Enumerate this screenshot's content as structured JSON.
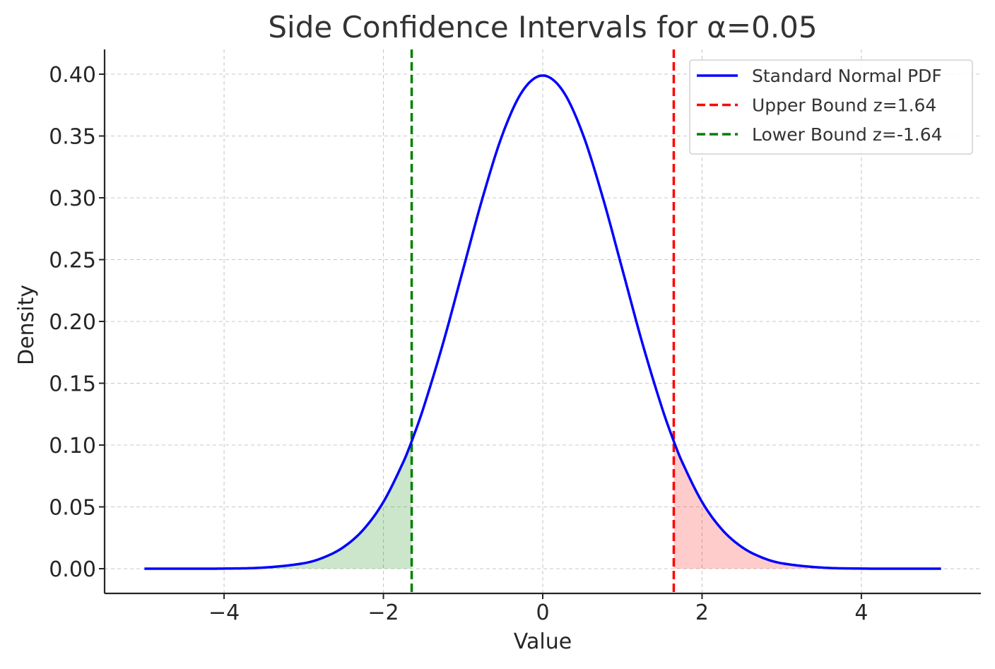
{
  "chart_data": {
    "type": "line",
    "title": "Side Confidence Intervals for α=0.05",
    "xlabel": "Value",
    "ylabel": "Density",
    "xlim": [
      -5.5,
      5.5
    ],
    "ylim": [
      -0.02,
      0.42
    ],
    "x_ticks": [
      -4,
      -2,
      0,
      2,
      4
    ],
    "x_tick_labels": [
      "−4",
      "−2",
      "0",
      "2",
      "4"
    ],
    "y_ticks": [
      0.0,
      0.05,
      0.1,
      0.15,
      0.2,
      0.25,
      0.3,
      0.35,
      0.4
    ],
    "y_tick_labels": [
      "0.00",
      "0.05",
      "0.10",
      "0.15",
      "0.20",
      "0.25",
      "0.30",
      "0.35",
      "0.40"
    ],
    "grid": true,
    "legend_position": "top-right",
    "series": [
      {
        "name": "Standard Normal PDF",
        "kind": "line",
        "color": "#0000ff",
        "x": [
          -5.0,
          -4.5,
          -4.0,
          -3.5,
          -3.0,
          -2.75,
          -2.5,
          -2.25,
          -2.0,
          -1.75,
          -1.645,
          -1.5,
          -1.25,
          -1.0,
          -0.75,
          -0.5,
          -0.25,
          0.0,
          0.25,
          0.5,
          0.75,
          1.0,
          1.25,
          1.5,
          1.645,
          1.75,
          2.0,
          2.25,
          2.5,
          2.75,
          3.0,
          3.5,
          4.0,
          4.5,
          5.0
        ],
        "y": [
          0.0,
          0.0,
          0.0001,
          0.0009,
          0.0044,
          0.0091,
          0.0175,
          0.0317,
          0.054,
          0.0863,
          0.1031,
          0.1295,
          0.1826,
          0.242,
          0.3011,
          0.3521,
          0.3867,
          0.3989,
          0.3867,
          0.3521,
          0.3011,
          0.242,
          0.1826,
          0.1295,
          0.1031,
          0.0863,
          0.054,
          0.0317,
          0.0175,
          0.0091,
          0.0044,
          0.0009,
          0.0001,
          0.0,
          0.0
        ]
      },
      {
        "name": "Upper Bound z=1.64",
        "kind": "vline",
        "color": "#ff0000",
        "x": 1.645
      },
      {
        "name": "Lower Bound z=-1.64",
        "kind": "vline",
        "color": "#008000",
        "x": -1.645
      }
    ],
    "shaded_regions": [
      {
        "from": -5.0,
        "to": -1.645,
        "color": "#008000",
        "opacity": 0.2
      },
      {
        "from": 1.645,
        "to": 5.0,
        "color": "#ff0000",
        "opacity": 0.2
      }
    ]
  }
}
